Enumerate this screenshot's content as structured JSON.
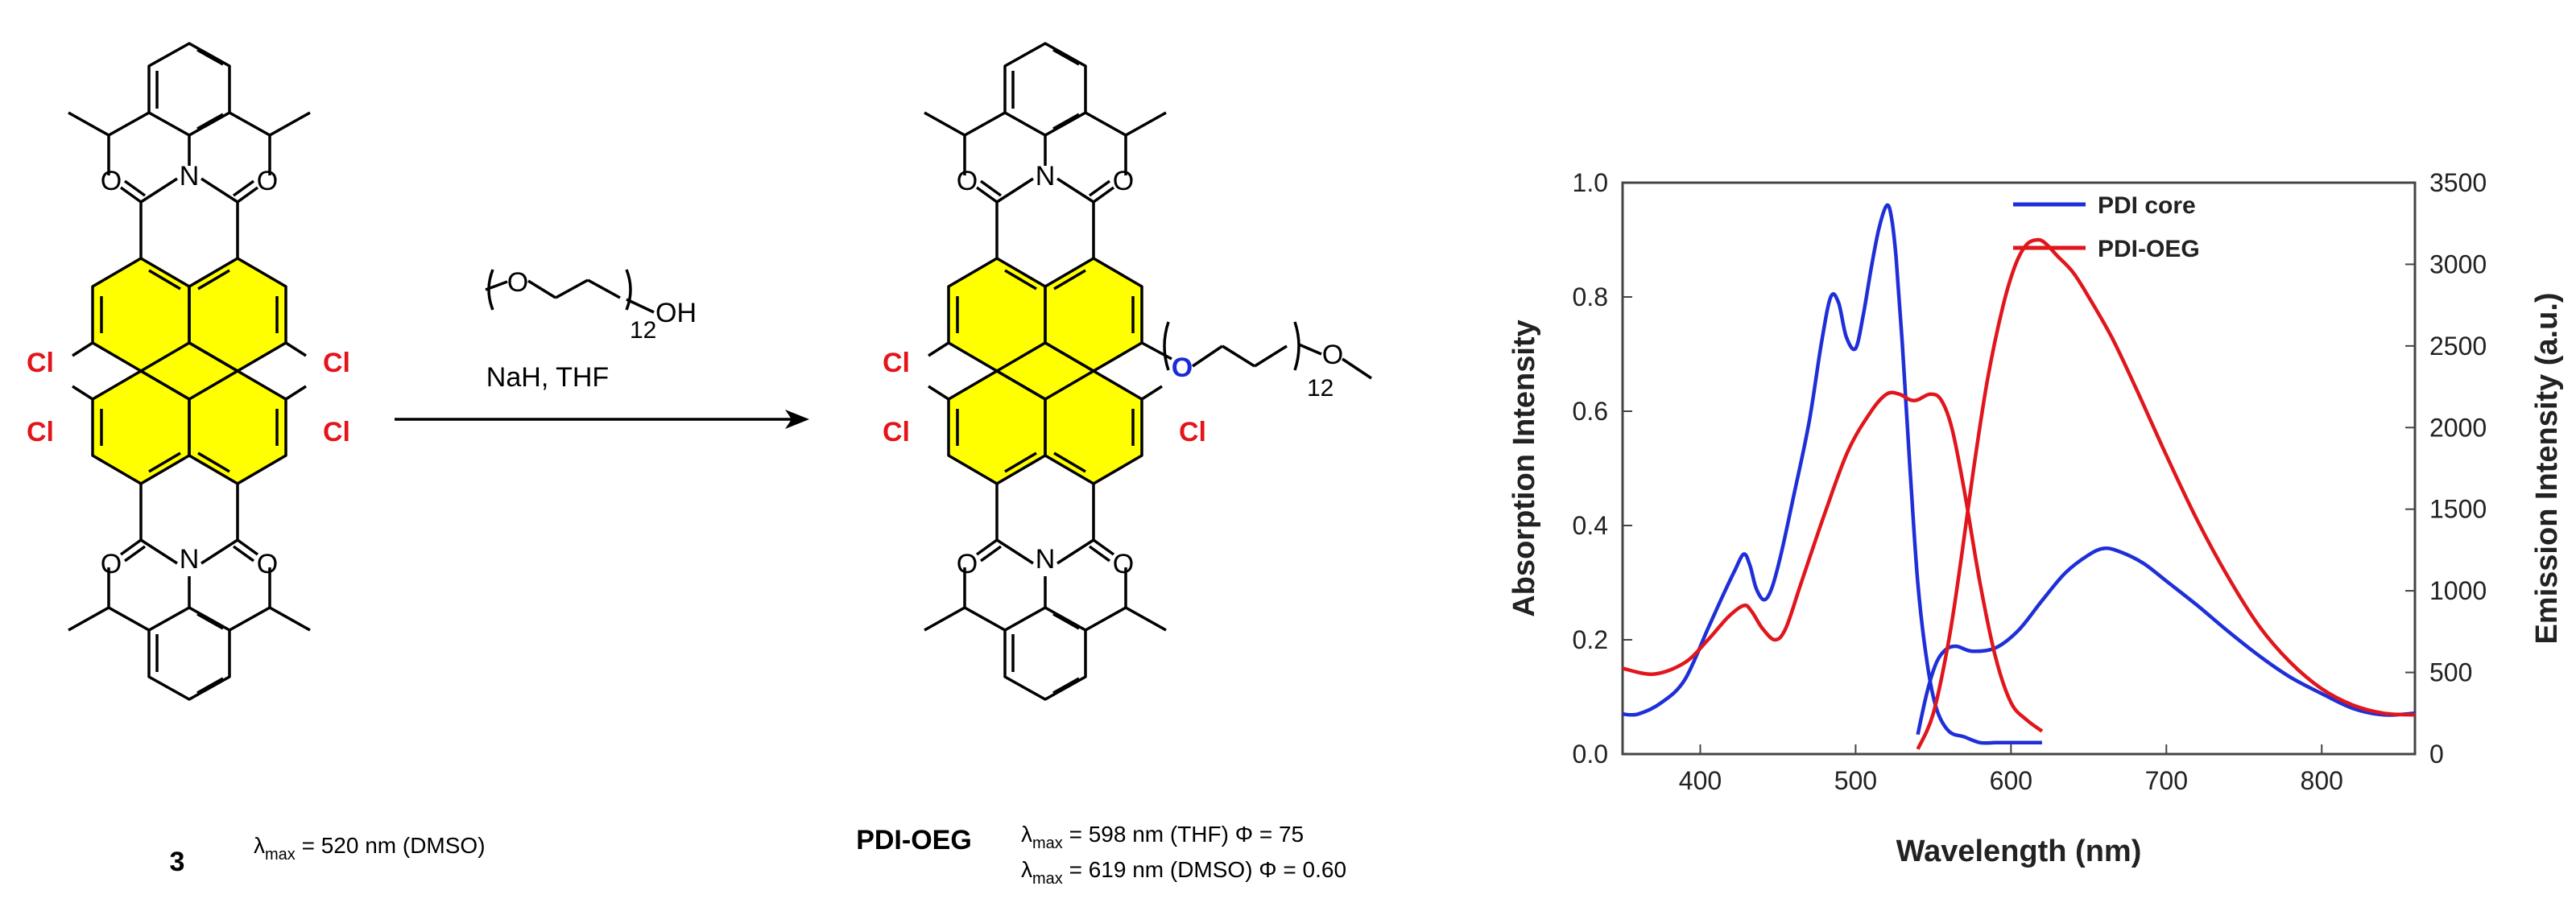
{
  "scheme": {
    "reactant": {
      "label": "3",
      "lambda_symbol": "λ",
      "lambda_sub": "max",
      "lambda_value": " = 520 nm (DMSO)",
      "chlorine_label": "Cl",
      "nitrogen_label": "N",
      "oxygen_label": "O"
    },
    "reagent": {
      "oh_label": "OH",
      "repeat_count": "12",
      "conditions": "NaH, THF"
    },
    "product": {
      "label": "PDI-OEG",
      "chain_repeat_count": "12",
      "lines": [
        {
          "lambda_symbol": "λ",
          "lambda_sub": "max",
          "text": " = 598 nm (THF) Φ = 75"
        },
        {
          "lambda_symbol": "λ",
          "lambda_sub": "max",
          "text": " = 619 nm (DMSO) Φ = 0.60"
        }
      ]
    },
    "colors": {
      "core_fill": "#ffff00",
      "chlorine": "#e4141b",
      "ether_oxygen": "#1a2bd6"
    }
  },
  "chart_data": {
    "type": "line",
    "xlabel": "Wavelength (nm)",
    "ylabel_left": "Absorption Intensity",
    "ylabel_right": "Emission Intensity (a.u.)",
    "xlim": [
      350,
      860
    ],
    "ylim_left": [
      0,
      1.0
    ],
    "ylim_right": [
      0,
      3500
    ],
    "x_ticks": [
      "400",
      "500",
      "600",
      "700",
      "800"
    ],
    "y_ticks_left": [
      "0.0",
      "0.2",
      "0.4",
      "0.6",
      "0.8",
      "1.0"
    ],
    "y_ticks_right": [
      "0",
      "500",
      "1000",
      "1500",
      "2000",
      "2500",
      "3000",
      "3500"
    ],
    "legend_position": "top",
    "series": [
      {
        "name": "PDI core",
        "color": "#1f2fd8",
        "role": "absorption",
        "axis": "left",
        "x": [
          350,
          360,
          375,
          390,
          405,
          415,
          422,
          428,
          432,
          436,
          441,
          446,
          452,
          460,
          470,
          478,
          484,
          489,
          494,
          500,
          505,
          510,
          515,
          520,
          523,
          526,
          530,
          535,
          540,
          546,
          552,
          560,
          570,
          580,
          590,
          600,
          610,
          620
        ],
        "y": [
          0.07,
          0.07,
          0.09,
          0.13,
          0.22,
          0.28,
          0.32,
          0.35,
          0.33,
          0.29,
          0.27,
          0.29,
          0.35,
          0.45,
          0.58,
          0.72,
          0.8,
          0.79,
          0.73,
          0.71,
          0.77,
          0.85,
          0.92,
          0.96,
          0.94,
          0.87,
          0.72,
          0.5,
          0.3,
          0.16,
          0.08,
          0.04,
          0.03,
          0.02,
          0.02,
          0.02,
          0.02,
          0.02
        ]
      },
      {
        "name": "PDI core",
        "color": "#1f2fd8",
        "role": "emission",
        "axis": "right",
        "x": [
          540,
          546,
          552,
          558,
          565,
          575,
          590,
          605,
          620,
          635,
          650,
          660,
          670,
          685,
          700,
          720,
          740,
          760,
          780,
          800,
          820,
          840,
          860
        ],
        "y": [
          120,
          380,
          560,
          640,
          660,
          630,
          650,
          760,
          940,
          1110,
          1220,
          1260,
          1240,
          1170,
          1060,
          910,
          750,
          600,
          470,
          370,
          280,
          240,
          250
        ]
      },
      {
        "name": "PDI-OEG",
        "color": "#e0161c",
        "role": "absorption",
        "axis": "left",
        "x": [
          350,
          370,
          390,
          405,
          418,
          428,
          433,
          440,
          448,
          455,
          465,
          480,
          495,
          510,
          520,
          528,
          535,
          540,
          548,
          555,
          562,
          570,
          580,
          590,
          600,
          610,
          620
        ],
        "y": [
          0.15,
          0.14,
          0.16,
          0.2,
          0.24,
          0.26,
          0.25,
          0.22,
          0.2,
          0.22,
          0.3,
          0.42,
          0.53,
          0.6,
          0.63,
          0.63,
          0.62,
          0.62,
          0.63,
          0.62,
          0.57,
          0.46,
          0.3,
          0.17,
          0.09,
          0.06,
          0.04
        ]
      },
      {
        "name": "PDI-OEG",
        "color": "#e0161c",
        "role": "emission",
        "axis": "right",
        "x": [
          540,
          550,
          560,
          568,
          576,
          585,
          595,
          603,
          610,
          617,
          622,
          630,
          640,
          650,
          665,
          680,
          700,
          720,
          740,
          760,
          780,
          800,
          820,
          840,
          860
        ],
        "y": [
          30,
          250,
          700,
          1200,
          1750,
          2300,
          2750,
          3000,
          3120,
          3150,
          3130,
          3050,
          2950,
          2800,
          2550,
          2250,
          1830,
          1430,
          1080,
          780,
          560,
          400,
          300,
          250,
          240
        ]
      }
    ]
  }
}
